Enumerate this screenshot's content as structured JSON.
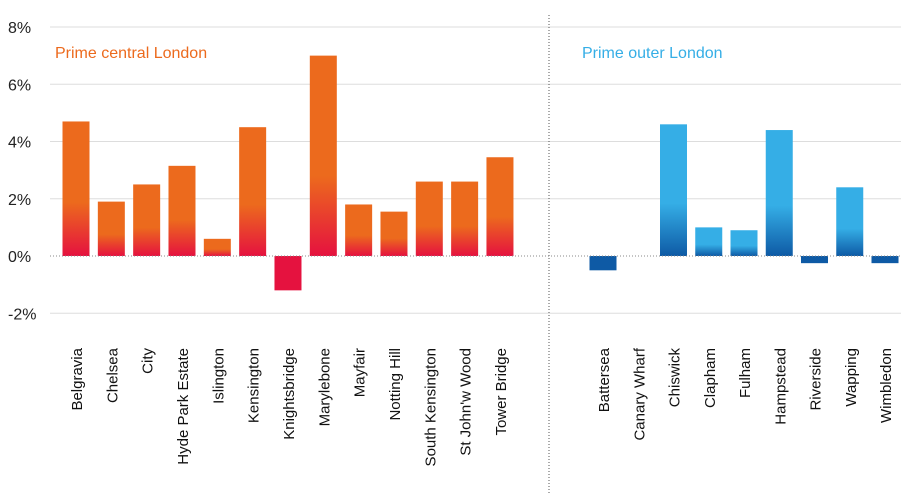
{
  "chart_data": {
    "type": "bar",
    "ylim": [
      -3,
      8
    ],
    "yticks": [
      -2,
      0,
      2,
      4,
      6,
      8
    ],
    "ytick_labels": [
      "-2%",
      "0%",
      "2%",
      "4%",
      "6%",
      "8%"
    ],
    "grid": true,
    "groups": [
      {
        "name": "Prime central London",
        "color": "#ec6a1d",
        "negative_color": "#e5123f",
        "categories": [
          "Belgravia",
          "Chelsea",
          "City",
          "Hyde Park Estate",
          "Islington",
          "Kensington",
          "Knightsbridge",
          "Marylebone",
          "Mayfair",
          "Notting Hill",
          "South Kensington",
          "St John'w Wood",
          "Tower Bridge"
        ],
        "values": [
          4.7,
          1.9,
          2.5,
          3.15,
          0.6,
          4.5,
          -1.2,
          7.0,
          1.8,
          1.55,
          2.6,
          2.6,
          3.45
        ]
      },
      {
        "name": "Prime outer London",
        "color": "#35aee6",
        "negative_color": "#0e5aa5",
        "categories": [
          "Battersea",
          "Canary Wharf",
          "Chiswick",
          "Clapham",
          "Fulham",
          "Hampstead",
          "Riverside",
          "Wapping",
          "Wimbledon"
        ],
        "values": [
          -0.5,
          0,
          4.6,
          1.0,
          0.9,
          4.4,
          -0.25,
          2.4,
          -0.25
        ]
      }
    ]
  }
}
